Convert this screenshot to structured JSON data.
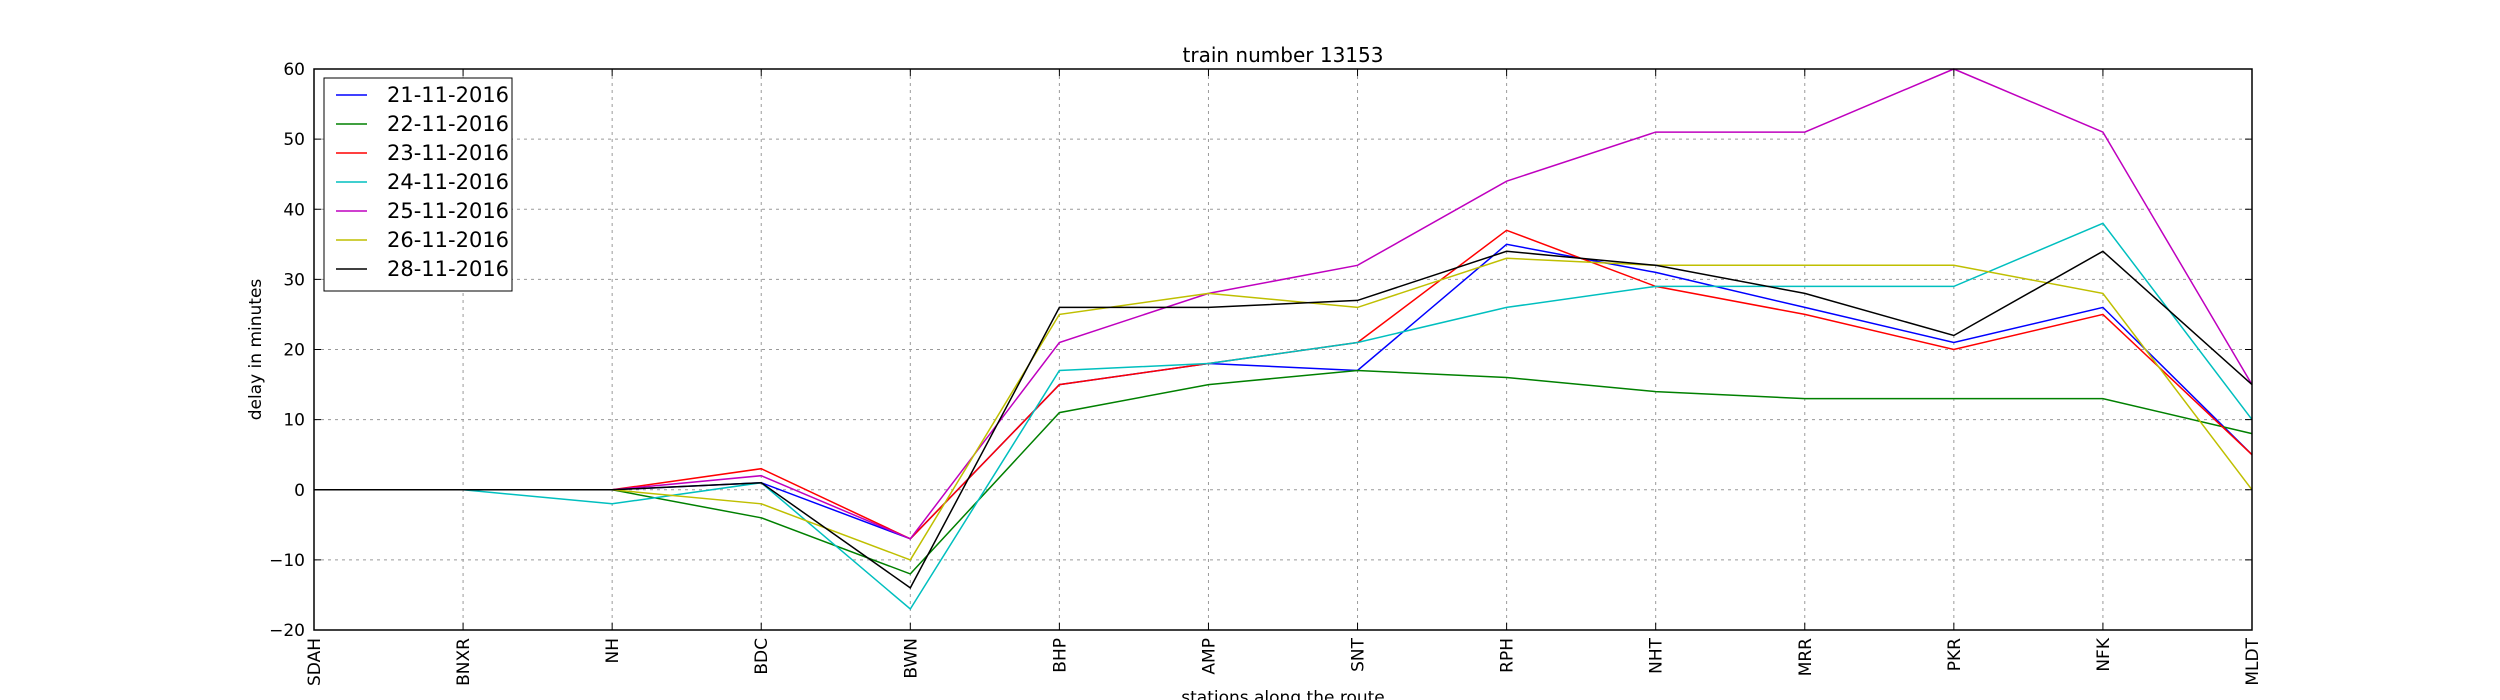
{
  "chart_data": {
    "type": "line",
    "title": "train number 13153",
    "xlabel": "stations along the route",
    "ylabel": "delay in minutes",
    "categories": [
      "SDAH",
      "BNXR",
      "NH",
      "BDC",
      "BWN",
      "BHP",
      "AMP",
      "SNT",
      "RPH",
      "NHT",
      "MRR",
      "PKR",
      "NFK",
      "MLDT"
    ],
    "ylim": [
      -20,
      60
    ],
    "yticks": [
      -20,
      -10,
      0,
      10,
      20,
      30,
      40,
      50,
      60
    ],
    "grid": true,
    "legend_position": "top-left",
    "series": [
      {
        "name": "21-11-2016",
        "color": "#0000ff",
        "values": [
          0,
          0,
          0,
          1,
          -7,
          15,
          18,
          17,
          35,
          31,
          26,
          21,
          26,
          5
        ]
      },
      {
        "name": "22-11-2016",
        "color": "#008000",
        "values": [
          0,
          0,
          0,
          -4,
          -12,
          11,
          15,
          17,
          16,
          14,
          13,
          13,
          13,
          8
        ]
      },
      {
        "name": "23-11-2016",
        "color": "#ff0000",
        "values": [
          0,
          0,
          0,
          3,
          -7,
          15,
          18,
          21,
          37,
          29,
          25,
          20,
          25,
          5
        ]
      },
      {
        "name": "24-11-2016",
        "color": "#00bfbf",
        "values": [
          0,
          0,
          -2,
          1,
          -17,
          17,
          18,
          21,
          26,
          29,
          29,
          29,
          38,
          10
        ]
      },
      {
        "name": "25-11-2016",
        "color": "#bf00bf",
        "values": [
          0,
          0,
          0,
          2,
          -7,
          21,
          28,
          32,
          44,
          51,
          51,
          60,
          51,
          15
        ]
      },
      {
        "name": "26-11-2016",
        "color": "#bfbf00",
        "values": [
          0,
          0,
          0,
          -2,
          -10,
          25,
          28,
          26,
          33,
          32,
          32,
          32,
          28,
          0
        ]
      },
      {
        "name": "28-11-2016",
        "color": "#000000",
        "values": [
          0,
          0,
          0,
          1,
          -14,
          26,
          26,
          27,
          34,
          32,
          28,
          22,
          34,
          15
        ]
      }
    ]
  }
}
